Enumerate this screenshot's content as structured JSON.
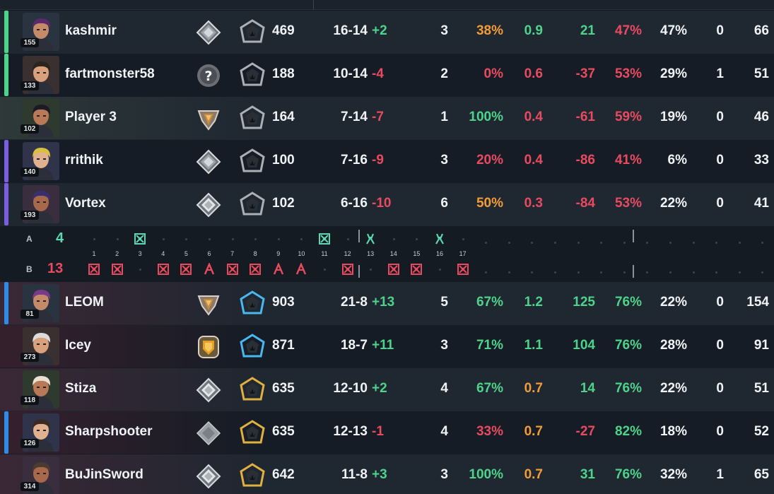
{
  "colors": {
    "green": "#4ed38a",
    "red": "#e84a5f",
    "orange": "#f29c38",
    "teamA_round_win": "#5ed6b4",
    "teamB_round_win": "#e84a5f"
  },
  "team_a": {
    "players": [
      {
        "name": "kashmir",
        "level": "155",
        "rank_icon": "platinum-rank-icon",
        "acs": "469",
        "kd": "16-14",
        "plus_minus": "+2",
        "pm_color": "green",
        "first_kills": "3",
        "hs": "38%",
        "hs_color": "orange",
        "kdr": "0.9",
        "kdr_color": "green",
        "adr": "21",
        "adr_color": "green",
        "kast": "47%",
        "kast_color": "red",
        "pct": "47%",
        "ms": "0",
        "dmg": "66",
        "bar_color": "#4ed38a"
      },
      {
        "name": "fartmonster58",
        "level": "133",
        "rank_icon": "unknown-rank-icon",
        "acs": "188",
        "kd": "10-14",
        "plus_minus": "-4",
        "pm_color": "red",
        "first_kills": "2",
        "hs": "0%",
        "hs_color": "red",
        "kdr": "0.6",
        "kdr_color": "red",
        "adr": "-37",
        "adr_color": "red",
        "kast": "53%",
        "kast_color": "red",
        "pct": "29%",
        "ms": "1",
        "dmg": "51",
        "bar_color": "#4ed38a"
      },
      {
        "name": "Player 3",
        "level": "102",
        "rank_icon": "gold-rank-icon",
        "acs": "164",
        "kd": "7-14",
        "plus_minus": "-7",
        "pm_color": "red",
        "first_kills": "1",
        "hs": "100%",
        "hs_color": "green",
        "kdr": "0.4",
        "kdr_color": "red",
        "adr": "-61",
        "adr_color": "red",
        "kast": "59%",
        "kast_color": "red",
        "pct": "19%",
        "ms": "0",
        "dmg": "46",
        "bar_color": ""
      },
      {
        "name": "rrithik",
        "level": "140",
        "rank_icon": "platinum-rank-icon",
        "acs": "100",
        "kd": "7-16",
        "plus_minus": "-9",
        "pm_color": "red",
        "first_kills": "3",
        "hs": "20%",
        "hs_color": "red",
        "kdr": "0.4",
        "kdr_color": "red",
        "adr": "-86",
        "adr_color": "red",
        "kast": "41%",
        "kast_color": "red",
        "pct": "6%",
        "ms": "0",
        "dmg": "33",
        "bar_color": "#7b5de0"
      },
      {
        "name": "Vortex",
        "level": "193",
        "rank_icon": "silver-rank-icon",
        "acs": "102",
        "kd": "6-16",
        "plus_minus": "-10",
        "pm_color": "red",
        "first_kills": "6",
        "hs": "50%",
        "hs_color": "orange",
        "kdr": "0.3",
        "kdr_color": "red",
        "adr": "-84",
        "adr_color": "red",
        "kast": "53%",
        "kast_color": "red",
        "pct": "22%",
        "ms": "0",
        "dmg": "41",
        "bar_color": "#7b5de0"
      }
    ]
  },
  "team_b": {
    "players": [
      {
        "name": "LEOM",
        "level": "81",
        "rank_icon": "gold-rank-icon",
        "acs": "903",
        "kd": "21-8",
        "plus_minus": "+13",
        "pm_color": "green",
        "first_kills": "5",
        "hs": "67%",
        "hs_color": "green",
        "kdr": "1.2",
        "kdr_color": "green",
        "adr": "125",
        "adr_color": "green",
        "kast": "76%",
        "kast_color": "green",
        "pct": "22%",
        "ms": "0",
        "dmg": "154",
        "bar_color": "#2f8be6"
      },
      {
        "name": "Icey",
        "level": "273",
        "rank_icon": "gold-shield-rank-icon",
        "acs": "871",
        "kd": "18-7",
        "plus_minus": "+11",
        "pm_color": "green",
        "first_kills": "3",
        "hs": "71%",
        "hs_color": "green",
        "kdr": "1.1",
        "kdr_color": "green",
        "adr": "104",
        "adr_color": "green",
        "kast": "76%",
        "kast_color": "green",
        "pct": "28%",
        "ms": "0",
        "dmg": "91",
        "bar_color": ""
      },
      {
        "name": "Stiza",
        "level": "118",
        "rank_icon": "silver-rank-icon",
        "acs": "635",
        "kd": "12-10",
        "plus_minus": "+2",
        "pm_color": "green",
        "first_kills": "4",
        "hs": "67%",
        "hs_color": "green",
        "kdr": "0.7",
        "kdr_color": "orange",
        "adr": "14",
        "adr_color": "green",
        "kast": "76%",
        "kast_color": "green",
        "pct": "22%",
        "ms": "0",
        "dmg": "51",
        "bar_color": ""
      },
      {
        "name": "Sharpshooter",
        "level": "126",
        "rank_icon": "silver-plain-rank-icon",
        "acs": "635",
        "kd": "12-13",
        "plus_minus": "-1",
        "pm_color": "red",
        "first_kills": "4",
        "hs": "33%",
        "hs_color": "red",
        "kdr": "0.7",
        "kdr_color": "orange",
        "adr": "-27",
        "adr_color": "red",
        "kast": "82%",
        "kast_color": "green",
        "pct": "18%",
        "ms": "0",
        "dmg": "52",
        "bar_color": "#2f8be6"
      },
      {
        "name": "BuJinSword",
        "level": "314",
        "rank_icon": "silver-rank-icon",
        "acs": "642",
        "kd": "11-8",
        "plus_minus": "+3",
        "pm_color": "green",
        "first_kills": "3",
        "hs": "100%",
        "hs_color": "green",
        "kdr": "0.7",
        "kdr_color": "orange",
        "adr": "31",
        "adr_color": "green",
        "kast": "76%",
        "kast_color": "green",
        "pct": "32%",
        "ms": "1",
        "dmg": "65",
        "bar_color": ""
      }
    ]
  },
  "timeline": {
    "team_a_label": "A",
    "team_a_score": "4",
    "team_b_label": "B",
    "team_b_score": "13",
    "rounds": [
      "1",
      "2",
      "3",
      "4",
      "5",
      "6",
      "7",
      "8",
      "9",
      "10",
      "11",
      "12",
      "13",
      "14",
      "15",
      "16",
      "17"
    ],
    "team_a_results": [
      "",
      "",
      "elimination",
      "",
      "",
      "",
      "",
      "",
      "",
      "",
      "elimination",
      "",
      "defuse",
      "",
      "",
      "defuse",
      ""
    ],
    "team_b_results": [
      "elimination",
      "elimination",
      "",
      "elimination",
      "elimination",
      "detonate",
      "elimination",
      "elimination",
      "detonate",
      "detonate",
      "",
      "elimination",
      "",
      "elimination",
      "elimination",
      "",
      "elimination"
    ]
  }
}
